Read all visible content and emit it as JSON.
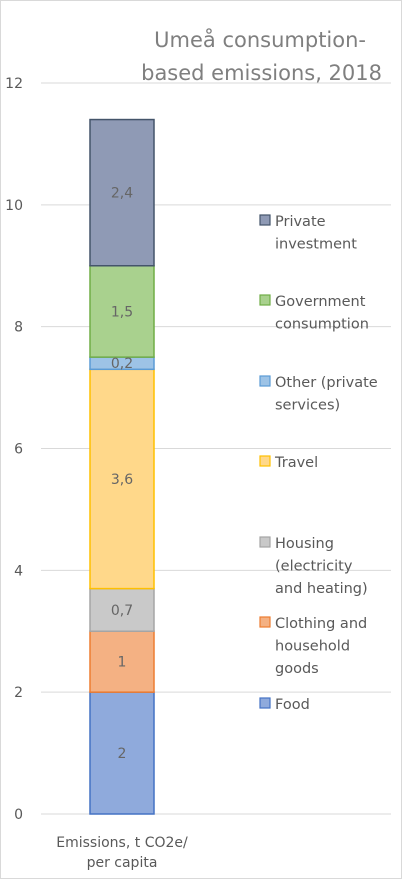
{
  "chart_data": {
    "type": "bar",
    "stacked": true,
    "title_lines": [
      "Umeå consumption-",
      "based emissions, 2018"
    ],
    "categories": [
      "Emissions, t CO2e/ per capita"
    ],
    "category_label_lines": [
      "Emissions, t CO2e/",
      "per capita"
    ],
    "ylim": [
      0,
      12
    ],
    "yticks": [
      0,
      2,
      4,
      6,
      8,
      10,
      12
    ],
    "grid": true,
    "legend_position": "right",
    "series": [
      {
        "name": "Food",
        "legend_lines": [
          "Food"
        ],
        "value": 2,
        "label": "2",
        "fill": "#8faadc",
        "stroke": "#4472c4"
      },
      {
        "name": "Clothing and household goods",
        "legend_lines": [
          "Clothing and",
          "household",
          "goods"
        ],
        "value": 1,
        "label": "1",
        "fill": "#f4b183",
        "stroke": "#ed7d31"
      },
      {
        "name": "Housing (electricity and heating)",
        "legend_lines": [
          "Housing",
          "(electricity",
          "and heating)"
        ],
        "value": 0.7,
        "label": "0,7",
        "fill": "#c9c9c9",
        "stroke": "#a5a5a5"
      },
      {
        "name": "Travel",
        "legend_lines": [
          "Travel"
        ],
        "value": 3.6,
        "label": "3,6",
        "fill": "#ffd88a",
        "stroke": "#ffc000"
      },
      {
        "name": "Other (private services)",
        "legend_lines": [
          "Other (private",
          "services)"
        ],
        "value": 0.2,
        "label": "0,2",
        "fill": "#9dc3e6",
        "stroke": "#5b9bd5"
      },
      {
        "name": "Government consumption",
        "legend_lines": [
          "Government",
          "consumption"
        ],
        "value": 1.5,
        "label": "1,5",
        "fill": "#a9d18e",
        "stroke": "#70ad47"
      },
      {
        "name": "Private investment",
        "legend_lines": [
          "Private",
          "investment"
        ],
        "value": 2.4,
        "label": "2,4",
        "fill": "#8f9ab5",
        "stroke": "#44546a"
      }
    ]
  }
}
